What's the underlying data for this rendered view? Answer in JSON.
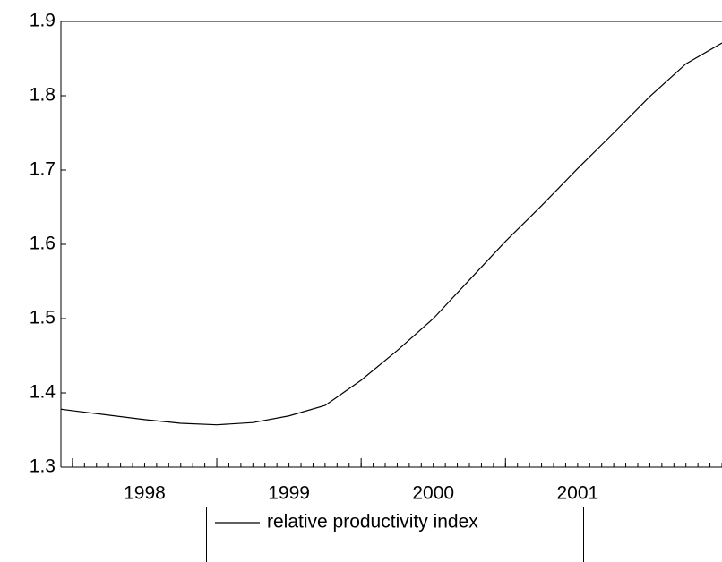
{
  "chart_data": {
    "type": "line",
    "x": [
      1997.92,
      1998.0,
      1998.25,
      1998.5,
      1998.75,
      1999.0,
      1999.25,
      1999.5,
      1999.75,
      2000.0,
      2000.25,
      2000.5,
      2000.75,
      2001.0,
      2001.25,
      2001.5,
      2001.75,
      2002.0,
      2002.25,
      2002.5
    ],
    "series": [
      {
        "name": "relative productivity index",
        "color": "#000000",
        "values": [
          1.378,
          1.376,
          1.37,
          1.364,
          1.359,
          1.357,
          1.36,
          1.369,
          1.383,
          1.417,
          1.457,
          1.5,
          1.552,
          1.604,
          1.652,
          1.702,
          1.75,
          1.799,
          1.843,
          1.871
        ]
      }
    ],
    "xlim": [
      1997.92,
      2002.5
    ],
    "xticks": [
      1998,
      1999,
      2000,
      2001
    ],
    "ylim": [
      1.3,
      1.9
    ],
    "yticks": [
      1.3,
      1.4,
      1.5,
      1.6,
      1.7,
      1.8,
      1.9
    ],
    "grid": false
  }
}
